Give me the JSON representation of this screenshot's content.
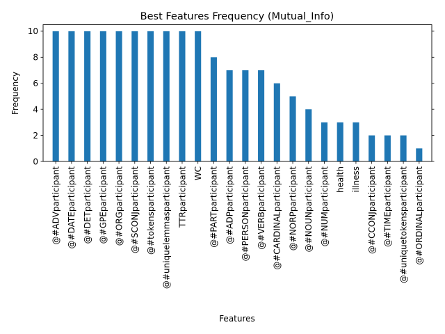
{
  "chart_data": {
    "type": "bar",
    "title": "Best Features Frequency (Mutual_Info)",
    "xlabel": "Features",
    "ylabel": "Frequency",
    "ylim": [
      0,
      10.5
    ],
    "yticks": [
      0,
      2,
      4,
      6,
      8,
      10
    ],
    "grid": false,
    "bar_color": "#1f77b4",
    "categories": [
      "@#ADVparticipant",
      "@#DATEparticipant",
      "@#DETparticipant",
      "@#GPEparticipant",
      "@#ORGparticipant",
      "@#SCONJparticipant",
      "@#tokensparticipant",
      "@#uniquelemmasparticipant",
      "TTRparticipant",
      "WC",
      "@#PARTparticipant",
      "@#ADPparticipant",
      "@#PERSONparticipant",
      "@#VERBparticipant",
      "@#CARDINALparticipant",
      "@#NORPparticipant",
      "@#NOUNparticipant",
      "@#NUMparticipant",
      "health",
      "illness",
      "@#CCONJparticipant",
      "@#TIMEparticipant",
      "@#uniquetokensparticipant",
      "@#ORDINALparticipant"
    ],
    "values": [
      10,
      10,
      10,
      10,
      10,
      10,
      10,
      10,
      10,
      10,
      8,
      7,
      7,
      7,
      6,
      5,
      4,
      3,
      3,
      3,
      2,
      2,
      2,
      1
    ]
  }
}
